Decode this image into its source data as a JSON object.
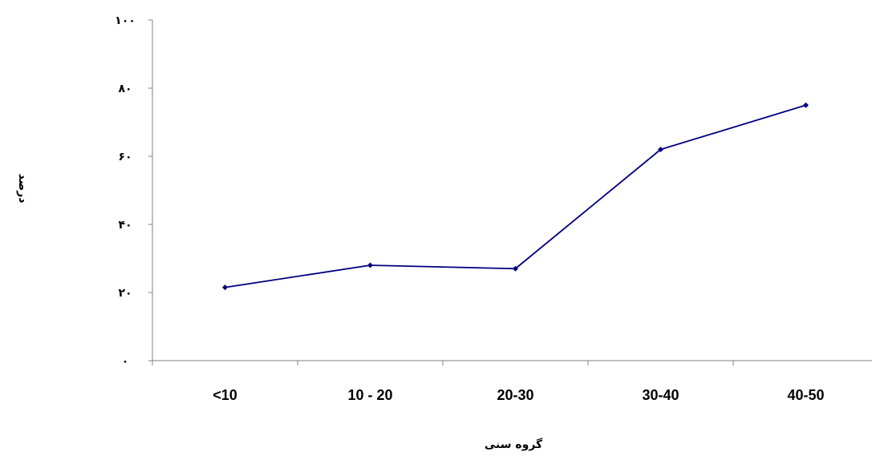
{
  "chart_data": {
    "type": "line",
    "categories": [
      "<10",
      "10 - 20",
      "20-30",
      "30-40",
      "40-50"
    ],
    "series": [
      {
        "values": [
          21.5,
          28,
          27,
          62,
          75
        ]
      }
    ],
    "ylim": [
      0,
      100
    ],
    "y_ticks": [
      0,
      20,
      40,
      60,
      80,
      100
    ],
    "y_tick_labels": [
      "٠",
      "٢٠",
      "۴٠",
      "۶٠",
      "٨٠",
      "١٠٠"
    ],
    "xlabel": "گروه سنی",
    "ylabel": "درصد",
    "grid": false,
    "legend": "none",
    "line_color": "#000080"
  }
}
